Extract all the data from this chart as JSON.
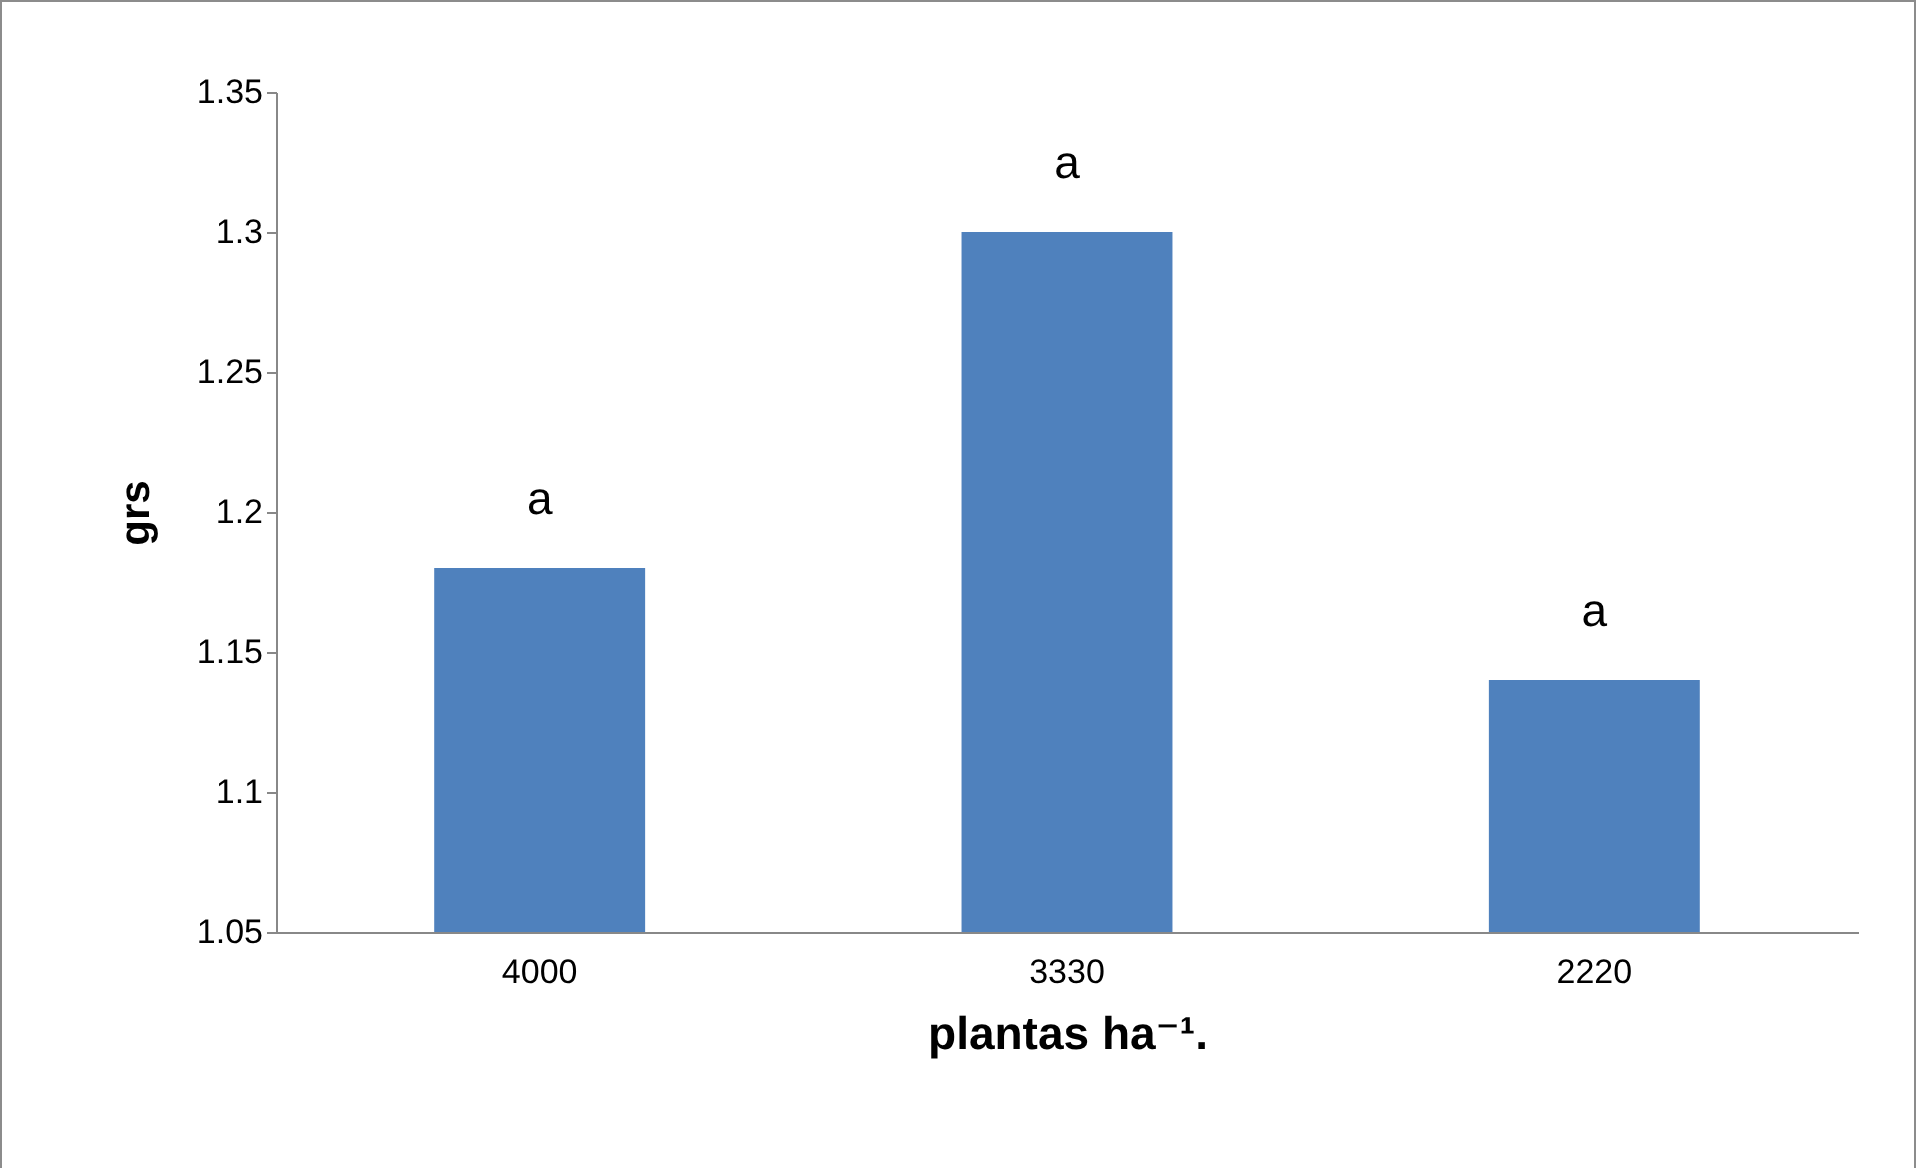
{
  "chart_data": {
    "type": "bar",
    "xlabel": "plantas ha⁻¹.",
    "ylabel": "grs",
    "categories": [
      "4000",
      "3330",
      "2220"
    ],
    "values": [
      1.18,
      1.3,
      1.14
    ],
    "color": "#4f81bd",
    "ylim": [
      1.05,
      1.35
    ],
    "yticks": [
      1.05,
      1.1,
      1.15,
      1.2,
      1.25,
      1.3,
      1.35
    ],
    "grid": false,
    "annotations": [
      {
        "text": "a",
        "x": "4000",
        "y": 1.18
      },
      {
        "text": "a",
        "x": "3330",
        "y": 1.3
      },
      {
        "text": "a",
        "x": "2220",
        "y": 1.14
      }
    ]
  }
}
